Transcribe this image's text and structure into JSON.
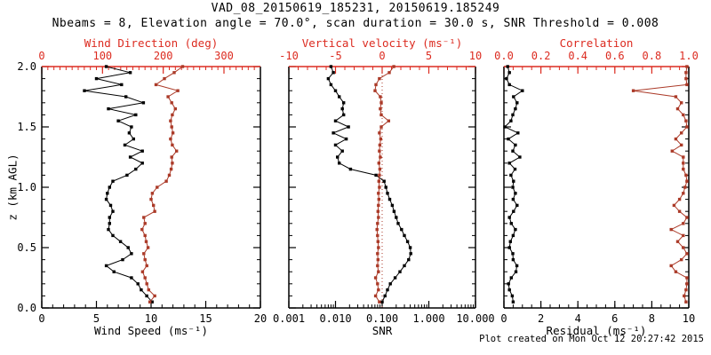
{
  "colors": {
    "black": "#000000",
    "axis_red": "#dc2b20",
    "data_red": "#ab3a28"
  },
  "footer": {
    "created": "Plot created on Mon Oct 12 20:27:42 2015"
  },
  "chart_data": {
    "type": "line",
    "title": "VAD_08_20150619_185231, 20150619.185249",
    "subtitle": "Nbeams = 8, Elevation angle = 70.0°, scan duration = 30.0 s, SNR Threshold = 0.008",
    "ylim": [
      0,
      2
    ],
    "y_axis": {
      "label": "z (km AGL)",
      "tick_values": [
        0,
        0.5,
        1,
        1.5,
        2
      ],
      "tick_labels": [
        "0.0",
        "0.5",
        "1.0",
        "1.5",
        "2.0"
      ],
      "minor_step": 0.1
    },
    "z_km": [
      0.05,
      0.1,
      0.15,
      0.2,
      0.25,
      0.3,
      0.35,
      0.4,
      0.45,
      0.5,
      0.55,
      0.6,
      0.65,
      0.7,
      0.75,
      0.8,
      0.85,
      0.9,
      0.95,
      1.0,
      1.05,
      1.1,
      1.15,
      1.2,
      1.25,
      1.3,
      1.35,
      1.4,
      1.45,
      1.5,
      1.55,
      1.6,
      1.65,
      1.7,
      1.75,
      1.8,
      1.85,
      1.9,
      1.95,
      2.0
    ],
    "panels": [
      {
        "name": "wind",
        "x_bottom": {
          "label": "Wind Speed (ms⁻¹)",
          "scale": "linear",
          "range": [
            0,
            20
          ],
          "tick_values": [
            0,
            5,
            10,
            15,
            20
          ],
          "tick_labels": [
            "0",
            "5",
            "10",
            "15",
            "20"
          ],
          "minor_step": 1
        },
        "x_top": {
          "label": "Wind Direction (deg)",
          "scale": "linear",
          "range": [
            0,
            360
          ],
          "tick_values": [
            0,
            100,
            200,
            300
          ],
          "tick_labels": [
            "0",
            "100",
            "200",
            "300"
          ],
          "minor_step": 10
        },
        "series": [
          {
            "name": "wind_speed",
            "axis": "bottom",
            "color": "black",
            "values": [
              10.1,
              9.6,
              9.1,
              8.8,
              8.2,
              6.6,
              5.9,
              7.4,
              8.2,
              7.9,
              7.2,
              6.5,
              6.1,
              6.2,
              6.2,
              6.5,
              6.3,
              5.9,
              6.0,
              6.2,
              6.5,
              7.8,
              8.6,
              9.2,
              8.1,
              9.2,
              7.6,
              8.4,
              8.0,
              8.2,
              7.0,
              8.6,
              6.1,
              9.3,
              7.7,
              3.9,
              7.3,
              5.0,
              8.1,
              5.9
            ]
          },
          {
            "name": "wind_direction",
            "axis": "top",
            "color": "red",
            "values": [
              178,
              186,
              176,
              173,
              170,
              166,
              173,
              170,
              168,
              175,
              172,
              170,
              165,
              170,
              168,
              186,
              184,
              180,
              182,
              190,
              205,
              210,
              213,
              215,
              214,
              222,
              215,
              212,
              216,
              214,
              212,
              215,
              220,
              214,
              208,
              224,
              188,
              202,
              218,
              232
            ]
          }
        ]
      },
      {
        "name": "snr-vvel",
        "x_bottom": {
          "label": "SNR",
          "scale": "log",
          "range": [
            0.001,
            10
          ],
          "tick_values": [
            0.001,
            0.01,
            0.1,
            1,
            10
          ],
          "tick_labels": [
            "0.001",
            "0.010",
            "0.100",
            "1.000",
            "10.000"
          ]
        },
        "x_top": {
          "label": "Vertical velocity (ms⁻¹)",
          "scale": "linear",
          "range": [
            -10,
            10
          ],
          "tick_values": [
            -10,
            -5,
            0,
            5,
            10
          ],
          "tick_labels": [
            "-10",
            "-5",
            "0",
            "5",
            "10"
          ],
          "minor_step": 1
        },
        "zero_line": {
          "axis": "top",
          "value": 0
        },
        "series": [
          {
            "name": "snr",
            "axis": "bottom",
            "color": "black",
            "values": [
              0.1,
              0.115,
              0.13,
              0.15,
              0.19,
              0.24,
              0.3,
              0.37,
              0.41,
              0.4,
              0.35,
              0.3,
              0.26,
              0.22,
              0.2,
              0.18,
              0.165,
              0.145,
              0.13,
              0.12,
              0.11,
              0.074,
              0.021,
              0.012,
              0.011,
              0.014,
              0.01,
              0.017,
              0.009,
              0.019,
              0.01,
              0.015,
              0.014,
              0.015,
              0.012,
              0.01,
              0.008,
              0.007,
              0.009,
              0.008
            ]
          },
          {
            "name": "vertical_velocity",
            "axis": "top",
            "color": "red",
            "values": [
              -0.3,
              -0.7,
              -0.4,
              -0.5,
              -0.7,
              -0.4,
              -0.5,
              -0.45,
              -0.5,
              -0.4,
              -0.45,
              -0.5,
              -0.55,
              -0.5,
              -0.4,
              -0.45,
              -0.4,
              -0.35,
              -0.4,
              -0.3,
              -0.35,
              -0.3,
              -0.25,
              -0.35,
              -0.2,
              -0.3,
              -0.25,
              -0.15,
              -0.3,
              -0.1,
              0.7,
              -0.1,
              -0.2,
              -0.1,
              -0.2,
              -0.76,
              -0.67,
              -0.3,
              0.76,
              1.25
            ]
          }
        ]
      },
      {
        "name": "residual-correlation",
        "x_bottom": {
          "label": "Residual (ms⁻¹)",
          "scale": "linear",
          "range": [
            0,
            10
          ],
          "tick_values": [
            0,
            2,
            4,
            6,
            8,
            10
          ],
          "tick_labels": [
            "0",
            "2",
            "4",
            "6",
            "8",
            "10"
          ],
          "minor_step": 0.5
        },
        "x_top": {
          "label": "Correlation",
          "scale": "linear",
          "range": [
            0,
            1
          ],
          "tick_values": [
            0,
            0.2,
            0.4,
            0.6,
            0.8,
            1
          ],
          "tick_labels": [
            "0.0",
            "0.2",
            "0.4",
            "0.6",
            "0.8",
            "1.0"
          ],
          "minor_step": 0.05
        },
        "series": [
          {
            "name": "residual",
            "axis": "bottom",
            "color": "black",
            "values": [
              0.5,
              0.45,
              0.3,
              0.25,
              0.4,
              0.65,
              0.7,
              0.5,
              0.48,
              0.3,
              0.35,
              0.5,
              0.62,
              0.4,
              0.3,
              0.52,
              0.71,
              0.5,
              0.62,
              0.48,
              0.52,
              0.38,
              0.6,
              0.3,
              0.86,
              0.48,
              0.62,
              0.24,
              0.76,
              0.05,
              0.38,
              0.48,
              0.62,
              0.71,
              0.52,
              1.0,
              0.3,
              0.14,
              0.3,
              0.2
            ]
          },
          {
            "name": "correlation",
            "axis": "top",
            "color": "red",
            "values": [
              0.985,
              0.975,
              0.985,
              0.99,
              0.99,
              0.93,
              0.905,
              0.96,
              0.99,
              0.97,
              0.94,
              0.97,
              0.905,
              0.97,
              0.99,
              0.95,
              0.92,
              0.95,
              0.97,
              0.98,
              0.99,
              0.985,
              0.97,
              0.97,
              0.97,
              0.91,
              0.96,
              0.93,
              0.96,
              0.99,
              0.985,
              0.97,
              0.94,
              0.96,
              0.93,
              0.7,
              0.99,
              0.985,
              0.985,
              0.99
            ]
          }
        ]
      }
    ]
  }
}
